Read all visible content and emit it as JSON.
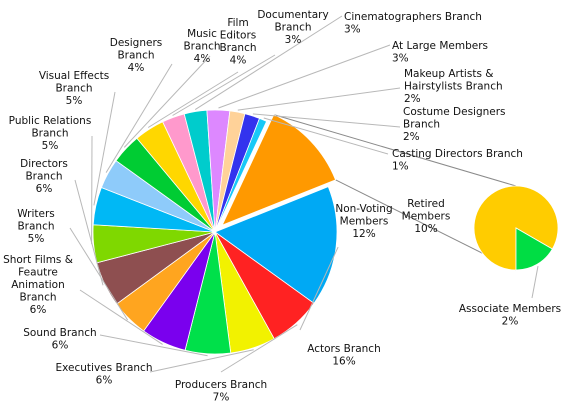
{
  "chart_data": {
    "type": "pie",
    "title": "",
    "unit": "%",
    "slices": [
      {
        "label": [
          "Non-Voting",
          "Members",
          "12%"
        ],
        "value": 12,
        "color": "#FF9900",
        "exploded": true
      },
      {
        "label": [
          "Actors Branch",
          "16%"
        ],
        "value": 16,
        "color": "#00A9F4"
      },
      {
        "label": [
          "Producers Branch",
          "7%"
        ],
        "value": 7,
        "color": "#FF2222"
      },
      {
        "label": [
          "Executives Branch",
          "6%"
        ],
        "value": 6,
        "color": "#F2F200"
      },
      {
        "label": [
          "Sound Branch",
          "6%"
        ],
        "value": 6,
        "color": "#00E04A"
      },
      {
        "label": [
          "Short Films &",
          "Feautre",
          "Animation",
          "Branch",
          "6%"
        ],
        "value": 6,
        "color": "#7A00EE"
      },
      {
        "label": [
          "Writers",
          "Branch",
          "5%"
        ],
        "value": 5,
        "color": "#FFA51F"
      },
      {
        "label": [
          "Directors",
          "Branch",
          "6%"
        ],
        "value": 6,
        "color": "#8E4F50"
      },
      {
        "label": [
          "Public Relations",
          "Branch",
          "5%"
        ],
        "value": 5,
        "color": "#7FD800"
      },
      {
        "label": [
          "Visual Effects",
          "Branch",
          "5%"
        ],
        "value": 5,
        "color": "#00B8F5"
      },
      {
        "label": [
          "Designers",
          "Branch",
          "4%"
        ],
        "value": 4,
        "color": "#8ECBFA"
      },
      {
        "label": [
          "Music",
          "Branch",
          "4%"
        ],
        "value": 4,
        "color": "#00CC33"
      },
      {
        "label": [
          "Film",
          "Editors",
          "Branch",
          "4%"
        ],
        "value": 4,
        "color": "#FFD700"
      },
      {
        "label": [
          "Documentary",
          "Branch",
          "3%"
        ],
        "value": 3,
        "color": "#FF99CC"
      },
      {
        "label": [
          "Cinematographers Branch",
          "3%"
        ],
        "value": 3,
        "color": "#00CCCC"
      },
      {
        "label": [
          "At Large Members",
          "3%"
        ],
        "value": 3,
        "color": "#DD88FF"
      },
      {
        "label": [
          "Makeup Artists &",
          "Hairstylists Branch",
          "2%"
        ],
        "value": 2,
        "color": "#FFD299"
      },
      {
        "label": [
          "Costume Designers",
          "Branch",
          "2%"
        ],
        "value": 2,
        "color": "#3333EE"
      },
      {
        "label": [
          "Casting Directors Branch",
          "1%"
        ],
        "value": 1,
        "color": "#19C9F7"
      }
    ],
    "breakdown": {
      "of": "Non-Voting Members",
      "slices": [
        {
          "label": [
            "Retired",
            "Members",
            "10%"
          ],
          "value": 10,
          "color": "#FFCC00"
        },
        {
          "label": [
            "Associate Members",
            "2%"
          ],
          "value": 2,
          "color": "#00DD44"
        }
      ]
    }
  }
}
